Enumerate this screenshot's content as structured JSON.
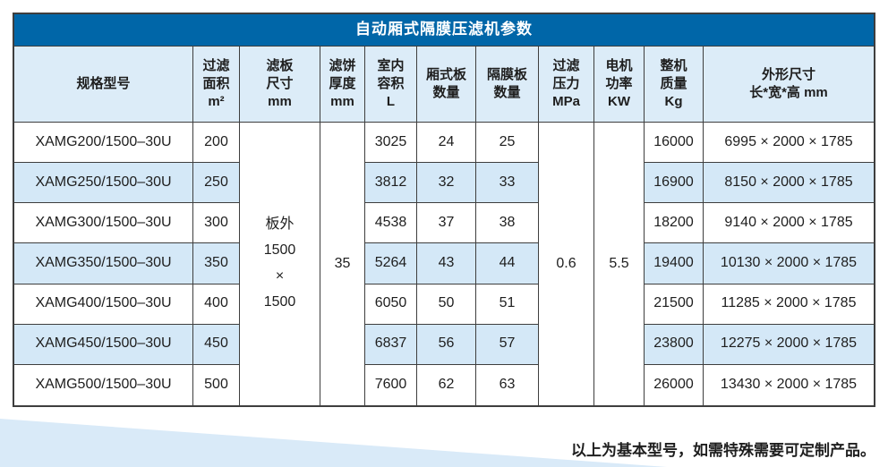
{
  "title": "自动厢式隔膜压滤机参数",
  "table": {
    "headers": {
      "model": "规格型号",
      "area": "过滤\n面积\nm²",
      "plate_size": "滤板\n尺寸\nmm",
      "cake_thickness": "滤饼\n厚度\nmm",
      "volume": "室内\n容积\nL",
      "chamber_plates": "厢式板\n数量",
      "diaphragm_plates": "隔膜板\n数量",
      "pressure": "过滤\n压力\nMPa",
      "motor_power": "电机\n功率\nKW",
      "weight": "整机\n质量\nKg",
      "dimensions": "外形尺寸\n长*宽*高 mm"
    },
    "merged": {
      "plate_size": "板外\n1500\n×\n1500",
      "cake_thickness": "35",
      "pressure": "0.6",
      "motor_power": "5.5"
    },
    "rows": [
      {
        "model": "XAMG200/1500–30U",
        "area": "200",
        "volume": "3025",
        "chamber_plates": "24",
        "diaphragm_plates": "25",
        "weight": "16000",
        "dimensions": "6995 × 2000 × 1785"
      },
      {
        "model": "XAMG250/1500–30U",
        "area": "250",
        "volume": "3812",
        "chamber_plates": "32",
        "diaphragm_plates": "33",
        "weight": "16900",
        "dimensions": "8150 × 2000 × 1785"
      },
      {
        "model": "XAMG300/1500–30U",
        "area": "300",
        "volume": "4538",
        "chamber_plates": "37",
        "diaphragm_plates": "38",
        "weight": "18200",
        "dimensions": "9140 × 2000 × 1785"
      },
      {
        "model": "XAMG350/1500–30U",
        "area": "350",
        "volume": "5264",
        "chamber_plates": "43",
        "diaphragm_plates": "44",
        "weight": "19400",
        "dimensions": "10130 × 2000 × 1785"
      },
      {
        "model": "XAMG400/1500–30U",
        "area": "400",
        "volume": "6050",
        "chamber_plates": "50",
        "diaphragm_plates": "51",
        "weight": "21500",
        "dimensions": "11285 × 2000 × 1785"
      },
      {
        "model": "XAMG450/1500–30U",
        "area": "450",
        "volume": "6837",
        "chamber_plates": "56",
        "diaphragm_plates": "57",
        "weight": "23800",
        "dimensions": "12275 × 2000 × 1785"
      },
      {
        "model": "XAMG500/1500–30U",
        "area": "500",
        "volume": "7600",
        "chamber_plates": "62",
        "diaphragm_plates": "63",
        "weight": "26000",
        "dimensions": "13430 × 2000 × 1785"
      }
    ]
  },
  "footer": {
    "note": "以上为基本型号，如需特殊需要可定制产品。"
  },
  "colors": {
    "title_bar": "#0066a8",
    "title_text": "#ffffff",
    "header_bg": "#dcecf8",
    "row_alt": "#d4e8f7",
    "border": "#3e3e3e",
    "text": "#1e1e1e",
    "wedge": "#d9eaf8"
  }
}
